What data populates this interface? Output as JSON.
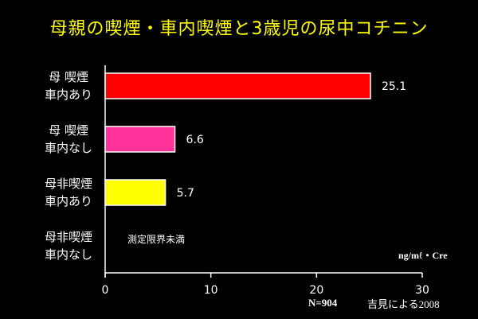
{
  "title": "母親の喫煙・車内喫煙と3歳児の尿中コチニン",
  "chart_data": {
    "type": "bar",
    "orientation": "horizontal",
    "categories": [
      [
        "母 喫煙",
        "車内あり"
      ],
      [
        "母 喫煙",
        "車内なし"
      ],
      [
        "母非喫煙",
        "車内あり"
      ],
      [
        "母非喫煙",
        "車内なし"
      ]
    ],
    "values": [
      25.1,
      6.6,
      5.7,
      null
    ],
    "value_labels": [
      "25.1",
      "6.6",
      "5.7",
      "測定限界未満"
    ],
    "bar_colors": [
      "#ff0000",
      "#ff3399",
      "#ffff00",
      null
    ],
    "xlim": [
      0,
      30
    ],
    "xticks": [
      0,
      10,
      20,
      30
    ],
    "unit_label": "ng/mℓ・Cre",
    "grid": false
  },
  "sample_size": "N=904",
  "source": "吉見による2008"
}
